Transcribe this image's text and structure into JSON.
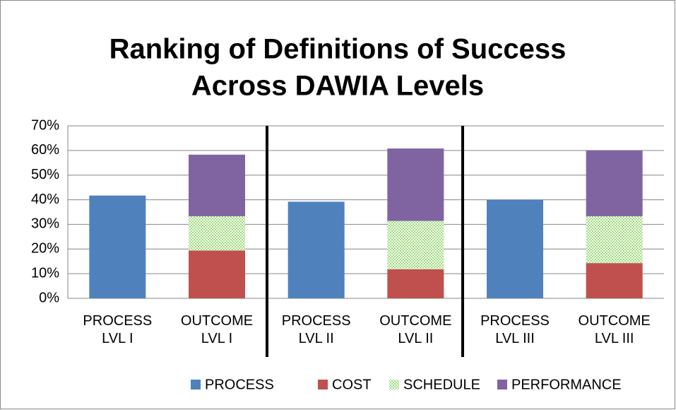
{
  "chart_data": {
    "type": "stacked_bar",
    "title": [
      "Ranking of Definitions of Success",
      "Across DAWIA Levels"
    ],
    "categories": [
      "PROCESS LVL I",
      "OUTCOME LVL I",
      "PROCESS LVL II",
      "OUTCOME LVL II",
      "PROCESS LVL III",
      "OUTCOME LVL III"
    ],
    "series": [
      {
        "name": "PROCESS",
        "color": "#4f81bd",
        "values": [
          41.7,
          null,
          39.2,
          null,
          40,
          null
        ]
      },
      {
        "name": "COST",
        "color": "#c0504d",
        "values": [
          null,
          19.4,
          null,
          11.8,
          null,
          14.3
        ]
      },
      {
        "name": "SCHEDULE",
        "color": "#9bdb7a",
        "values": [
          null,
          13.9,
          null,
          19.6,
          null,
          19
        ]
      },
      {
        "name": "PERFORMANCE",
        "color": "#8064a2",
        "values": [
          null,
          25,
          null,
          29.4,
          null,
          26.7
        ]
      }
    ],
    "ylim": [
      0,
      70
    ],
    "yticks": [
      {
        "value": 0,
        "label": "0%"
      },
      {
        "value": 10,
        "label": "10%"
      },
      {
        "value": 20,
        "label": "20%"
      },
      {
        "value": 30,
        "label": "30%"
      },
      {
        "value": 40,
        "label": "40%"
      },
      {
        "value": 50,
        "label": "50%"
      },
      {
        "value": 60,
        "label": "60%"
      },
      {
        "value": 70,
        "label": "70%"
      }
    ],
    "grid": true,
    "legend": "bottom"
  }
}
